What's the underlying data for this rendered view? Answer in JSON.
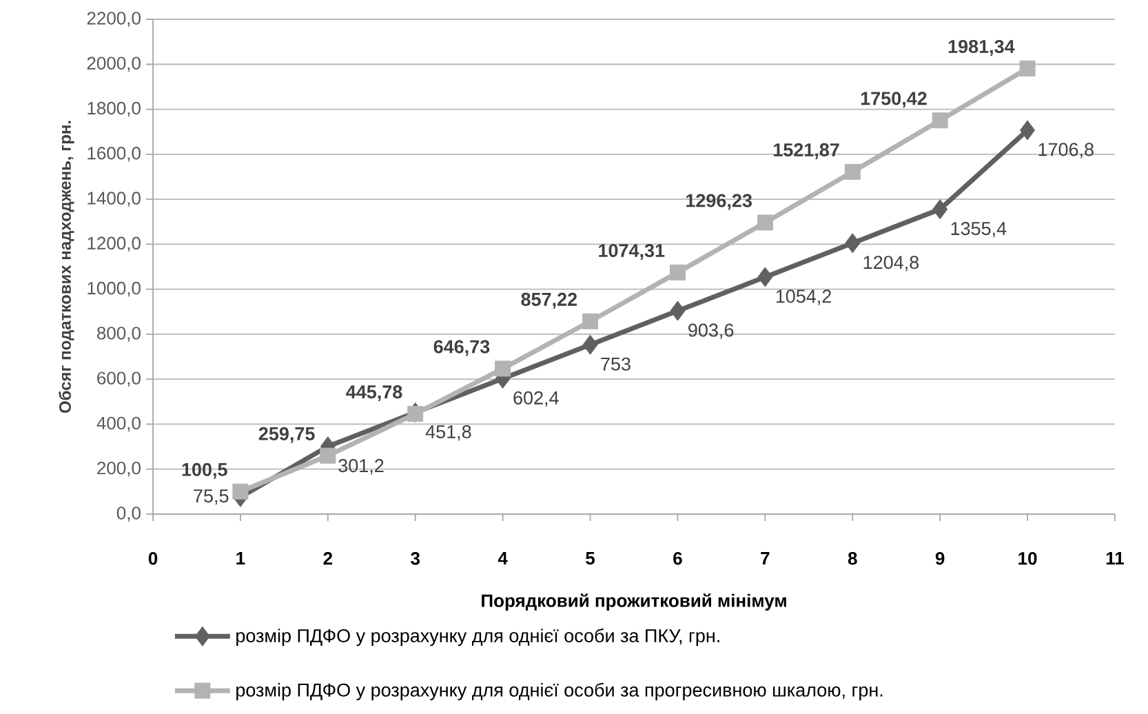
{
  "chart_data": {
    "type": "line",
    "xlabel": "Порядковий прожитковий мінімум",
    "ylabel": "Обсяг податкових надходжень, грн.",
    "x": [
      1,
      2,
      3,
      4,
      5,
      6,
      7,
      8,
      9,
      10
    ],
    "series": [
      {
        "name": "розмір ПДФО у розрахунку для однієї особи за ПКУ, грн.",
        "color": "#606060",
        "marker": "diamond",
        "values": [
          75.5,
          301.2,
          451.8,
          602.4,
          753,
          903.6,
          1054.2,
          1204.8,
          1355.4,
          1706.8
        ],
        "value_labels": [
          "75,5",
          "301,2",
          "451,8",
          "602,4",
          "753",
          "903,6",
          "1054,2",
          "1204,8",
          "1355,4",
          "1706,8"
        ]
      },
      {
        "name": "розмір ПДФО у розрахунку для однієї особи за прогресивною шкалою, грн.",
        "color": "#b3b3b3",
        "marker": "square",
        "values": [
          100.5,
          259.75,
          445.78,
          646.73,
          857.22,
          1074.31,
          1296.23,
          1521.87,
          1750.42,
          1981.34
        ],
        "value_labels": [
          "100,5",
          "259,75",
          "445,78",
          "646,73",
          "857,22",
          "1074,31",
          "1296,23",
          "1521,87",
          "1750,42",
          "1981,34"
        ]
      }
    ],
    "xlim": [
      0,
      11
    ],
    "xticks": [
      0,
      1,
      2,
      3,
      4,
      5,
      6,
      7,
      8,
      9,
      10,
      11
    ],
    "ylim": [
      0,
      2200
    ],
    "yticks": [
      {
        "value": 0,
        "label": "0,0"
      },
      {
        "value": 200,
        "label": "200,0"
      },
      {
        "value": 400,
        "label": "400,0"
      },
      {
        "value": 600,
        "label": "600,0"
      },
      {
        "value": 800,
        "label": "800,0"
      },
      {
        "value": 1000,
        "label": "1000,0"
      },
      {
        "value": 1200,
        "label": "1200,0"
      },
      {
        "value": 1400,
        "label": "1400,0"
      },
      {
        "value": 1600,
        "label": "1600,0"
      },
      {
        "value": 1800,
        "label": "1800,0"
      },
      {
        "value": 2000,
        "label": "2000,0"
      },
      {
        "value": 2200,
        "label": "2200,0"
      }
    ],
    "grid": "y",
    "legend": "bottom"
  }
}
